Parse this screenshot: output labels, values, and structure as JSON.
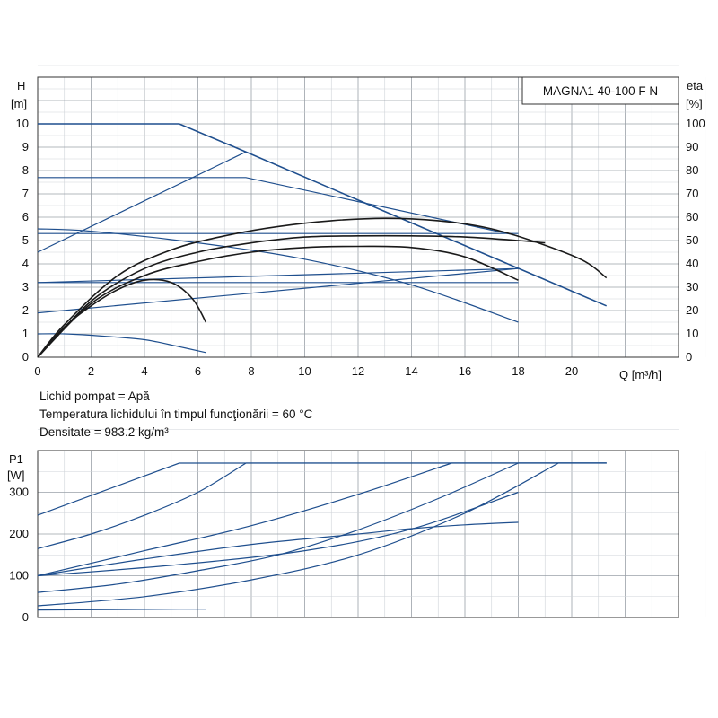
{
  "chart_data": [
    {
      "type": "line",
      "title": "MAGNA1 40-100 F N",
      "ylabel": "H",
      "yunit": "[m]",
      "y2label": "eta",
      "y2unit": "[%]",
      "xlabel": "Q [m³/h]",
      "xlim": [
        0,
        24
      ],
      "ylim": [
        0,
        12
      ],
      "y2lim": [
        0,
        120
      ],
      "xticks": [
        0,
        2,
        4,
        6,
        8,
        10,
        12,
        14,
        16,
        18,
        20
      ],
      "yticks": [
        0,
        1,
        2,
        3,
        4,
        5,
        6,
        7,
        8,
        9,
        10
      ],
      "y2ticks": [
        0,
        10,
        20,
        30,
        40,
        50,
        60,
        70,
        80,
        90,
        100
      ],
      "grid": true,
      "series": [
        {
          "kind": "head",
          "x": [
            0,
            5.3,
            7.8,
            13.5,
            21.3
          ],
          "y": [
            10,
            10,
            8.8,
            6.0,
            2.2
          ]
        },
        {
          "kind": "head",
          "x": [
            0,
            7.8,
            18.0
          ],
          "y": [
            7.7,
            7.7,
            5.2
          ]
        },
        {
          "kind": "head",
          "x": [
            0,
            2,
            6,
            10,
            14,
            18.0
          ],
          "y": [
            5.5,
            5.4,
            4.9,
            4.2,
            3.1,
            1.5
          ]
        },
        {
          "kind": "head",
          "x": [
            0,
            18.0
          ],
          "y": [
            5.3,
            5.3
          ]
        },
        {
          "kind": "head",
          "x": [
            0,
            18.0
          ],
          "y": [
            3.2,
            3.2
          ]
        },
        {
          "kind": "head",
          "x": [
            0,
            1,
            2.5,
            4,
            5.3,
            6.3
          ],
          "y": [
            1.0,
            1.0,
            0.9,
            0.75,
            0.45,
            0.2
          ]
        },
        {
          "kind": "system",
          "x": [
            0,
            7.8
          ],
          "y": [
            4.5,
            8.8
          ]
        },
        {
          "kind": "system",
          "x": [
            0,
            18.0
          ],
          "y": [
            3.2,
            3.8
          ]
        },
        {
          "kind": "system",
          "x": [
            0,
            18.0
          ],
          "y": [
            1.9,
            3.8
          ]
        },
        {
          "kind": "efficiency",
          "x": [
            0,
            1,
            3,
            5,
            7,
            9,
            11,
            13,
            15,
            17,
            19,
            20.5,
            21.3
          ],
          "y": [
            0,
            14,
            35,
            46,
            52,
            56,
            58.5,
            59.5,
            58.5,
            55,
            48,
            41,
            34
          ]
        },
        {
          "kind": "efficiency",
          "x": [
            0,
            2,
            4,
            6,
            8,
            10,
            12,
            14,
            16,
            18,
            19
          ],
          "y": [
            0,
            24,
            38,
            45,
            49,
            51.5,
            52,
            52,
            51.5,
            50,
            49
          ]
        },
        {
          "kind": "efficiency",
          "x": [
            0,
            2,
            4,
            6,
            8,
            10,
            12,
            14,
            16,
            18
          ],
          "y": [
            0,
            23,
            35,
            41,
            45,
            47,
            47.5,
            47,
            43,
            33
          ]
        },
        {
          "kind": "efficiency",
          "x": [
            0,
            1,
            2,
            3,
            4,
            5,
            5.8,
            6.3
          ],
          "y": [
            0,
            13,
            22,
            29,
            33,
            32,
            25,
            15
          ]
        }
      ]
    },
    {
      "type": "line",
      "ylabel": "P1",
      "yunit": "[W]",
      "xlim": [
        0,
        24
      ],
      "ylim": [
        0,
        400
      ],
      "yticks": [
        0,
        100,
        200,
        300
      ],
      "grid": true,
      "series": [
        {
          "x": [
            0,
            5.3,
            21.3
          ],
          "y": [
            245,
            370,
            370
          ]
        },
        {
          "x": [
            0,
            2,
            4,
            6,
            7.8
          ],
          "y": [
            165,
            200,
            245,
            300,
            370
          ]
        },
        {
          "x": [
            0,
            4,
            8,
            12,
            15.5
          ],
          "y": [
            100,
            160,
            220,
            295,
            370
          ]
        },
        {
          "x": [
            0,
            3,
            6,
            9,
            12,
            15,
            18.0
          ],
          "y": [
            60,
            80,
            112,
            150,
            210,
            285,
            370
          ]
        },
        {
          "x": [
            0,
            4,
            8,
            12,
            16,
            19.5
          ],
          "y": [
            28,
            50,
            90,
            150,
            250,
            370
          ]
        },
        {
          "x": [
            0,
            4,
            8,
            12,
            14,
            16,
            18.0
          ],
          "y": [
            100,
            140,
            175,
            200,
            213,
            222,
            228
          ]
        },
        {
          "x": [
            0,
            5,
            10,
            14,
            18.0
          ],
          "y": [
            100,
            125,
            160,
            212,
            300
          ]
        },
        {
          "x": [
            0,
            5.3,
            6.3
          ],
          "y": [
            18,
            20,
            20
          ]
        }
      ]
    }
  ],
  "fluid_info": {
    "line1": "Lichid pompat = Apă",
    "line2": "Temperatura lichidului în timpul funcţionării = 60 °C",
    "line3": "Densitate = 983.2 kg/m³"
  },
  "colors": {
    "curve": "#1f4f8e",
    "efficiency": "#1a1a1a",
    "grid": "#9aa0a8",
    "axis": "#333333"
  }
}
